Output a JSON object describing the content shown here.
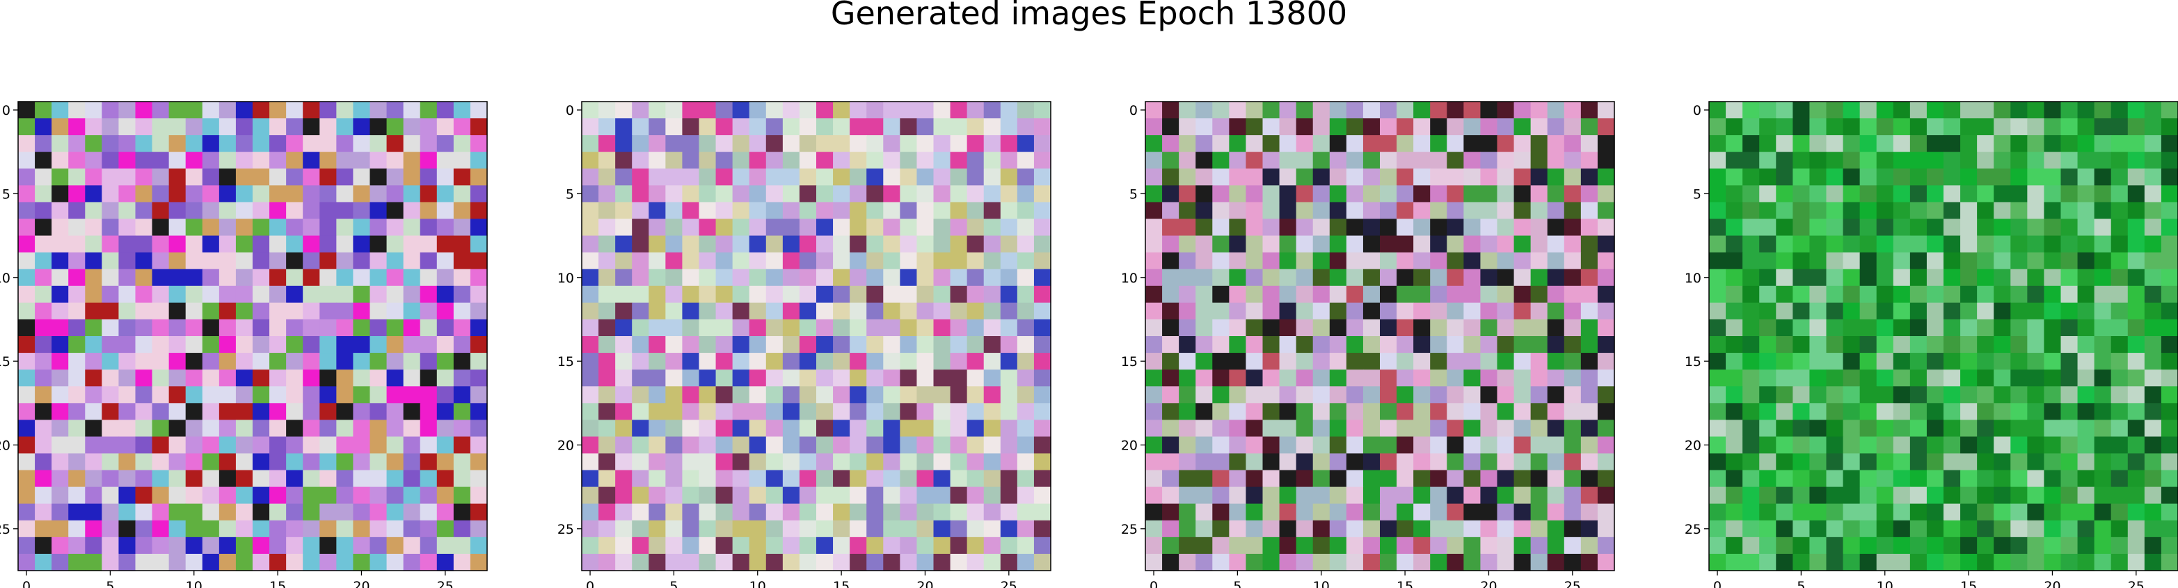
{
  "title": "Generated images Epoch 13800",
  "chart_data": {
    "type": "heatmap",
    "title": "Generated images Epoch 13800",
    "panels": [
      {
        "name": "",
        "grid": 28,
        "palette": [
          "#c58fe0",
          "#a978d8",
          "#e4b8e8",
          "#dcdcf0",
          "#8e6fd0",
          "#6fc4d8",
          "#e86fd8",
          "#b8a0d8",
          "#f0d0e0",
          "#7f55c8",
          "#c8e0c8",
          "#d0a060",
          "#b01c1c",
          "#2020c0",
          "#f01ccc",
          "#1c1c1c",
          "#60b040",
          "#e0e0e0"
        ]
      },
      {
        "name": "",
        "grid": 28,
        "palette": [
          "#d8b8e8",
          "#c8a0dc",
          "#e8d0ec",
          "#e0e8e0",
          "#b8d0e8",
          "#c8c8a0",
          "#e0d8b0",
          "#a8c8b8",
          "#f0e8e8",
          "#d898d8",
          "#8878c8",
          "#b0d8c0",
          "#c8c070",
          "#703050",
          "#e040a0",
          "#3040c0",
          "#d0e8d0",
          "#9cb8d8"
        ]
      },
      {
        "name": "",
        "grid": 28,
        "palette": [
          "#d8b0d0",
          "#c8a0d8",
          "#e0d0e0",
          "#b8c8a0",
          "#a0b8c8",
          "#e8c8e0",
          "#d080c8",
          "#c05060",
          "#501828",
          "#202040",
          "#406020",
          "#d8d8f0",
          "#b0d0c0",
          "#1c1c1c",
          "#40a040",
          "#20a030",
          "#a890d0",
          "#e8a0d0"
        ]
      },
      {
        "name": "",
        "grid": 28,
        "palette": [
          "#20a030",
          "#10b030",
          "#30c040",
          "#40b050",
          "#108820",
          "#186830",
          "#50c870",
          "#70d090",
          "#0c5020",
          "#28a840",
          "#5ab860",
          "#18c048",
          "#a0c8a8",
          "#c0d8c8",
          "#3e9c3e",
          "#1a9a2a",
          "#46d060",
          "#0e7a28"
        ]
      }
    ],
    "x_ticks": [
      0,
      5,
      10,
      15,
      20,
      25
    ],
    "y_ticks": [
      0,
      5,
      10,
      15,
      20,
      25
    ],
    "xlim": [
      -0.5,
      27.5
    ],
    "ylim": [
      27.5,
      -0.5
    ],
    "grid": false
  }
}
